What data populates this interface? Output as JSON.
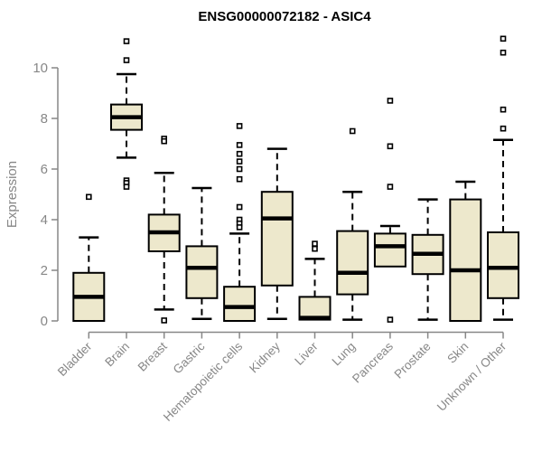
{
  "chart_data": {
    "type": "boxplot",
    "title": "ENSG00000072182 - ASIC4",
    "ylabel": "Expression",
    "xlabel": "",
    "ylim": [
      0,
      11.3
    ],
    "yticks": [
      0,
      2,
      4,
      6,
      8,
      10
    ],
    "grid": false,
    "legend": "none",
    "categories": [
      "Bladder",
      "Brain",
      "Breast",
      "Gastric",
      "Hematopoietic cells",
      "Kidney",
      "Liver",
      "Lung",
      "Pancreas",
      "Prostate",
      "Skin",
      "Unknown / Other"
    ],
    "series": [
      {
        "category": "Bladder",
        "q1": 0.0,
        "median": 0.95,
        "q3": 1.9,
        "whisker_low": null,
        "whisker_high": 3.3,
        "outliers": [
          4.9
        ]
      },
      {
        "category": "Brain",
        "q1": 7.55,
        "median": 8.05,
        "q3": 8.55,
        "whisker_low": 6.45,
        "whisker_high": 9.75,
        "outliers": [
          11.05,
          10.3,
          5.55,
          5.45,
          5.3
        ]
      },
      {
        "category": "Breast",
        "q1": 2.75,
        "median": 3.5,
        "q3": 4.2,
        "whisker_low": 0.45,
        "whisker_high": 5.85,
        "outliers": [
          7.2,
          7.1,
          0.02
        ]
      },
      {
        "category": "Gastric",
        "q1": 0.9,
        "median": 2.1,
        "q3": 2.95,
        "whisker_low": 0.08,
        "whisker_high": 5.25,
        "outliers": []
      },
      {
        "category": "Hematopoietic cells",
        "q1": 0.0,
        "median": 0.55,
        "q3": 1.35,
        "whisker_low": null,
        "whisker_high": 3.45,
        "outliers": [
          7.7,
          6.95,
          6.6,
          6.3,
          6.0,
          5.6,
          4.5,
          4.0,
          3.85,
          3.7
        ]
      },
      {
        "category": "Kidney",
        "q1": 1.4,
        "median": 4.05,
        "q3": 5.1,
        "whisker_low": 0.08,
        "whisker_high": 6.8,
        "outliers": []
      },
      {
        "category": "Liver",
        "q1": 0.05,
        "median": 0.12,
        "q3": 0.95,
        "whisker_low": null,
        "whisker_high": 2.45,
        "outliers": [
          3.05,
          2.85
        ]
      },
      {
        "category": "Lung",
        "q1": 1.05,
        "median": 1.9,
        "q3": 3.55,
        "whisker_low": 0.05,
        "whisker_high": 5.1,
        "outliers": [
          7.5
        ]
      },
      {
        "category": "Pancreas",
        "q1": 2.15,
        "median": 2.95,
        "q3": 3.45,
        "whisker_low": null,
        "whisker_high": 3.75,
        "outliers": [
          8.7,
          6.9,
          5.3,
          0.05
        ]
      },
      {
        "category": "Prostate",
        "q1": 1.85,
        "median": 2.65,
        "q3": 3.4,
        "whisker_low": 0.05,
        "whisker_high": 4.8,
        "outliers": []
      },
      {
        "category": "Skin",
        "q1": 0.0,
        "median": 2.0,
        "q3": 4.8,
        "whisker_low": null,
        "whisker_high": 5.5,
        "outliers": []
      },
      {
        "category": "Unknown / Other",
        "q1": 0.9,
        "median": 2.1,
        "q3": 3.5,
        "whisker_low": 0.05,
        "whisker_high": 7.15,
        "outliers": [
          11.15,
          10.6,
          8.35,
          7.6
        ]
      }
    ],
    "colors": {
      "box_fill": "#EDE8CC",
      "box_border": "#000000",
      "median": "#000000",
      "whisker": "#000000",
      "outlier_stroke": "#000000",
      "axis": "#878787",
      "title": "#000000",
      "background": "#ffffff"
    }
  }
}
